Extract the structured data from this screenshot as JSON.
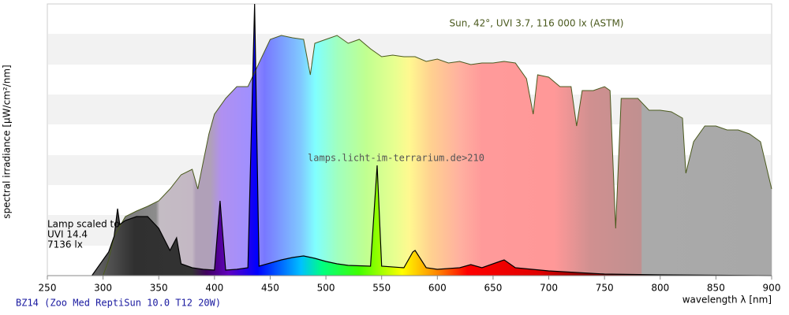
{
  "chart_data": {
    "type": "spectrum",
    "title": "BZ14 (Zoo Med ReptiSun 10.0 T12 20W)",
    "x_label": "wavelength λ [nm]",
    "y_label": "spectral irradiance [µW/cm²/nm]",
    "watermark": "lamps.licht-im-terrarium.de>210",
    "annotations": [
      "Sun, 42°, UVI 3.7, 116 000 lx (ASTM)",
      "Lamp scaled to",
      "UVI 14.4",
      "7136 lx"
    ],
    "xlim": [
      250,
      900
    ],
    "xticks": [
      250,
      300,
      350,
      400,
      450,
      500,
      550,
      600,
      650,
      700,
      750,
      800,
      850,
      900
    ],
    "ylim": [
      0,
      345
    ],
    "series": [
      {
        "name": "Sun",
        "color": "#4b5a1e",
        "x": [
          295,
          300,
          305,
          310,
          320,
          330,
          340,
          350,
          360,
          370,
          380,
          385,
          390,
          395,
          400,
          410,
          420,
          430,
          440,
          450,
          460,
          470,
          480,
          486,
          490,
          500,
          510,
          520,
          530,
          540,
          550,
          560,
          570,
          580,
          590,
          600,
          610,
          620,
          630,
          640,
          650,
          660,
          670,
          680,
          686,
          690,
          700,
          710,
          720,
          725,
          730,
          740,
          750,
          755,
          760,
          765,
          770,
          780,
          790,
          800,
          810,
          820,
          823,
          830,
          840,
          850,
          860,
          870,
          880,
          890,
          900
        ],
        "values": [
          0,
          0,
          20,
          50,
          75,
          82,
          88,
          95,
          110,
          128,
          135,
          110,
          145,
          180,
          205,
          225,
          240,
          240,
          270,
          300,
          305,
          302,
          300,
          255,
          295,
          300,
          305,
          295,
          300,
          288,
          278,
          280,
          278,
          278,
          272,
          275,
          270,
          272,
          268,
          270,
          270,
          272,
          270,
          250,
          205,
          255,
          252,
          240,
          240,
          190,
          235,
          235,
          240,
          235,
          60,
          225,
          225,
          225,
          210,
          210,
          208,
          200,
          130,
          170,
          190,
          190,
          185,
          185,
          180,
          170,
          110
        ]
      },
      {
        "name": "Lamp",
        "color": "#000000",
        "x": [
          290,
          300,
          305,
          310,
          313,
          315,
          320,
          330,
          340,
          350,
          360,
          366,
          370,
          380,
          390,
          400,
          405,
          410,
          420,
          430,
          436,
          440,
          450,
          460,
          470,
          480,
          490,
          500,
          510,
          520,
          540,
          546,
          550,
          570,
          578,
          580,
          590,
          600,
          620,
          630,
          640,
          660,
          670,
          700,
          750,
          800,
          900
        ],
        "values": [
          0,
          20,
          30,
          50,
          85,
          65,
          70,
          75,
          75,
          60,
          32,
          48,
          15,
          10,
          8,
          7,
          95,
          7,
          8,
          10,
          345,
          12,
          16,
          20,
          23,
          25,
          22,
          18,
          15,
          13,
          12,
          140,
          12,
          10,
          30,
          32,
          10,
          8,
          10,
          14,
          10,
          20,
          10,
          6,
          2,
          1,
          0
        ]
      }
    ]
  }
}
